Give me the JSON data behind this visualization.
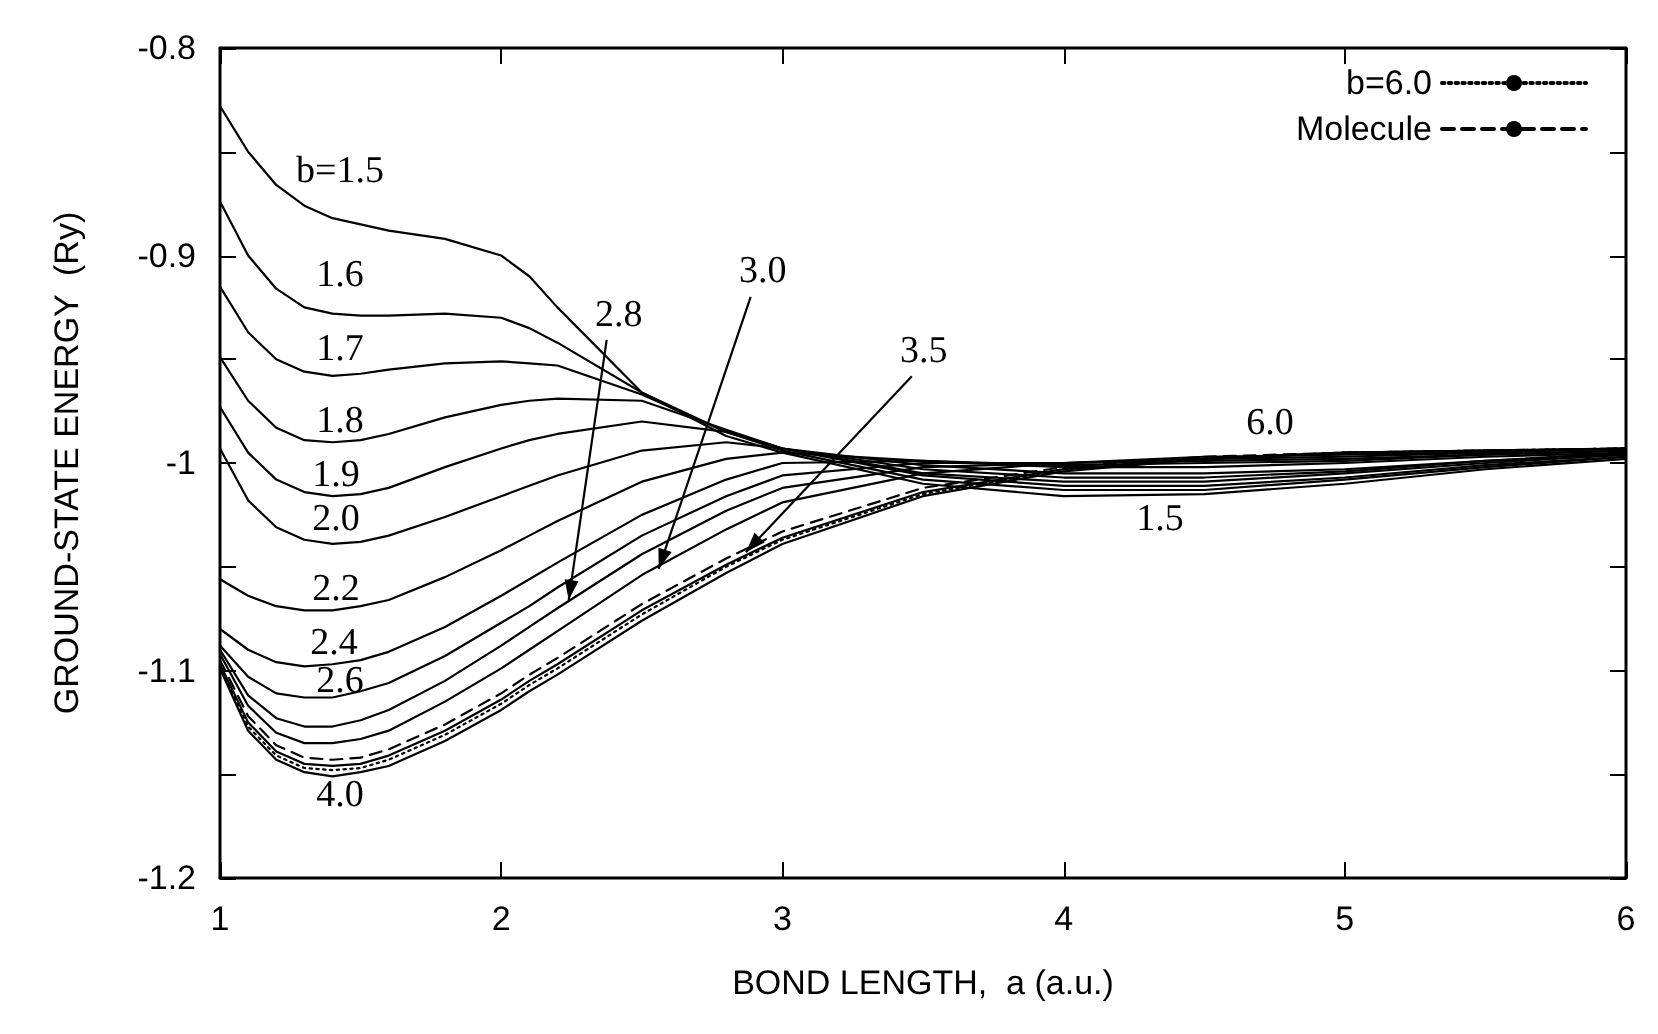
{
  "chart_data": {
    "type": "line",
    "xlabel": "BOND LENGTH,  a (a.u.)",
    "ylabel": "GROUND-STATE ENERGY  (Ry)",
    "x": [
      1,
      1.1,
      1.2,
      1.3,
      1.4,
      1.5,
      1.6,
      1.8,
      2.0,
      2.1,
      2.2,
      2.5,
      2.8,
      3.0,
      3.5,
      4.0,
      4.5,
      5.0,
      5.5,
      6.0
    ],
    "xlim": [
      1,
      6
    ],
    "xticks": [
      1,
      2,
      3,
      4,
      5,
      6
    ],
    "ylim": [
      -1.2,
      -0.8
    ],
    "yticks": [
      -1.2,
      {
        "value": -1.15,
        "label": null
      },
      -1.1,
      {
        "value": -1.05,
        "label": null
      },
      -1,
      {
        "value": -0.95,
        "label": null
      },
      -0.9,
      {
        "value": -0.85,
        "label": null
      },
      -0.8
    ],
    "grid": false,
    "legend": "top right",
    "marker": "none",
    "series": [
      {
        "color": "#000000",
        "line_style": "solid",
        "values": [
          -0.828,
          -0.85,
          -0.866,
          -0.876,
          -0.882,
          -0.885,
          -0.888,
          -0.892,
          -0.9,
          -0.91,
          -0.925,
          -0.966,
          -0.987,
          -0.995,
          -1.01,
          -1.016,
          -1.015,
          -1.01,
          -1.003,
          -0.998
        ]
      },
      {
        "color": "#000000",
        "line_style": "solid",
        "values": [
          -0.874,
          -0.9,
          -0.916,
          -0.925,
          -0.928,
          -0.929,
          -0.929,
          -0.928,
          -0.93,
          -0.935,
          -0.942,
          -0.966,
          -0.985,
          -0.994,
          -1.008,
          -1.013,
          -1.013,
          -1.008,
          -1.002,
          -0.997
        ]
      },
      {
        "color": "#000000",
        "line_style": "solid",
        "values": [
          -0.915,
          -0.937,
          -0.95,
          -0.956,
          -0.958,
          -0.957,
          -0.955,
          -0.952,
          -0.951,
          -0.952,
          -0.953,
          -0.967,
          -0.985,
          -0.993,
          -1.006,
          -1.011,
          -1.011,
          -1.007,
          -1.001,
          -0.997
        ]
      },
      {
        "color": "#000000",
        "line_style": "solid",
        "values": [
          -0.949,
          -0.97,
          -0.983,
          -0.989,
          -0.99,
          -0.989,
          -0.986,
          -0.978,
          -0.972,
          -0.97,
          -0.969,
          -0.97,
          -0.984,
          -0.993,
          -1.005,
          -1.009,
          -1.009,
          -1.005,
          -1.0,
          -0.996
        ]
      },
      {
        "color": "#000000",
        "line_style": "solid",
        "values": [
          -0.973,
          -0.995,
          -1.008,
          -1.014,
          -1.016,
          -1.015,
          -1.012,
          -1.002,
          -0.993,
          -0.989,
          -0.986,
          -0.98,
          -0.985,
          -0.993,
          -1.003,
          -1.007,
          -1.007,
          -1.004,
          -0.999,
          -0.996
        ]
      },
      {
        "color": "#000000",
        "line_style": "solid",
        "values": [
          -0.993,
          -1.018,
          -1.031,
          -1.037,
          -1.039,
          -1.038,
          -1.035,
          -1.026,
          -1.016,
          -1.011,
          -1.006,
          -0.994,
          -0.99,
          -0.993,
          -1.001,
          -1.005,
          -1.005,
          -1.003,
          -0.999,
          -0.995
        ]
      },
      {
        "color": "#000000",
        "line_style": "solid",
        "values": [
          -1.056,
          -1.064,
          -1.069,
          -1.071,
          -1.071,
          -1.069,
          -1.066,
          -1.055,
          -1.042,
          -1.035,
          -1.028,
          -1.009,
          -0.998,
          -0.995,
          -0.999,
          -1.002,
          -1.002,
          -1.0,
          -0.997,
          -0.995
        ]
      },
      {
        "color": "#000000",
        "line_style": "solid",
        "values": [
          -1.08,
          -1.09,
          -1.096,
          -1.098,
          -1.097,
          -1.095,
          -1.091,
          -1.079,
          -1.064,
          -1.056,
          -1.048,
          -1.025,
          -1.008,
          -1.0,
          -0.999,
          -1.001,
          -1.0,
          -0.999,
          -0.996,
          -0.994
        ]
      },
      {
        "color": "#000000",
        "line_style": "solid",
        "values": [
          -1.088,
          -1.103,
          -1.111,
          -1.113,
          -1.113,
          -1.11,
          -1.106,
          -1.093,
          -1.077,
          -1.069,
          -1.06,
          -1.035,
          -1.016,
          -1.006,
          -1.0,
          -1.0,
          -0.999,
          -0.998,
          -0.996,
          -0.994
        ]
      },
      {
        "color": "#000000",
        "line_style": "solid",
        "values": [
          -1.09,
          -1.112,
          -1.123,
          -1.127,
          -1.127,
          -1.124,
          -1.119,
          -1.105,
          -1.088,
          -1.079,
          -1.07,
          -1.044,
          -1.023,
          -1.012,
          -1.002,
          -1.0,
          -0.998,
          -0.997,
          -0.995,
          -0.993
        ]
      },
      {
        "color": "#000000",
        "line_style": "solid",
        "values": [
          -1.092,
          -1.117,
          -1.13,
          -1.135,
          -1.135,
          -1.133,
          -1.129,
          -1.115,
          -1.099,
          -1.09,
          -1.081,
          -1.054,
          -1.032,
          -1.019,
          -1.005,
          -1.0,
          -0.997,
          -0.996,
          -0.995,
          -0.993
        ]
      },
      {
        "color": "#000000",
        "line_style": "solid",
        "values": [
          -1.097,
          -1.125,
          -1.139,
          -1.145,
          -1.146,
          -1.145,
          -1.141,
          -1.129,
          -1.114,
          -1.105,
          -1.097,
          -1.071,
          -1.049,
          -1.036,
          -1.014,
          -1.003,
          -0.998,
          -0.995,
          -0.994,
          -0.993
        ]
      },
      {
        "color": "#000000",
        "line_style": "solid",
        "values": [
          -1.099,
          -1.129,
          -1.143,
          -1.149,
          -1.151,
          -1.149,
          -1.146,
          -1.134,
          -1.119,
          -1.11,
          -1.102,
          -1.076,
          -1.053,
          -1.039,
          -1.016,
          -1.004,
          -0.998,
          -0.995,
          -0.994,
          -0.993
        ]
      },
      {
        "name": "b=6.0",
        "color": "#000000",
        "line_style": "dotted",
        "values": [
          -1.098,
          -1.127,
          -1.141,
          -1.147,
          -1.148,
          -1.147,
          -1.143,
          -1.131,
          -1.116,
          -1.107,
          -1.099,
          -1.073,
          -1.05,
          -1.037,
          -1.015,
          -1.003,
          -0.998,
          -0.995,
          -0.994,
          -0.993
        ]
      },
      {
        "name": "Molecule",
        "color": "#000000",
        "line_style": "dashed",
        "values": [
          -1.095,
          -1.122,
          -1.136,
          -1.142,
          -1.143,
          -1.142,
          -1.138,
          -1.126,
          -1.111,
          -1.102,
          -1.094,
          -1.068,
          -1.046,
          -1.033,
          -1.012,
          -1.002,
          -0.997,
          -0.995,
          -0.994,
          -0.993
        ]
      }
    ],
    "annotations": [
      "b=1.5",
      "1.6",
      "1.7",
      "1.8",
      "1.9",
      "2.0",
      "2.2",
      "2.4",
      "2.6",
      {
        "text": "2.8",
        "x": 2.24,
        "y": -1.066
      },
      {
        "text": "3.0",
        "x": 2.56,
        "y": -1.051
      },
      {
        "text": "3.5",
        "x": 2.87,
        "y": -1.043
      },
      "4.0",
      "6.0",
      "1.5"
    ]
  }
}
